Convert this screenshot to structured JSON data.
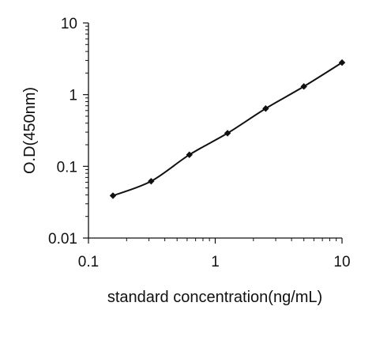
{
  "chart_data": {
    "type": "line",
    "title": "",
    "xlabel": "standard concentration(ng/mL)",
    "ylabel": "O.D(450nm)",
    "x_scale": "log",
    "y_scale": "log",
    "xlim": [
      0.1,
      10
    ],
    "ylim": [
      0.01,
      10
    ],
    "x_ticks": [
      {
        "value": 0.1,
        "label": "0.1"
      },
      {
        "value": 1,
        "label": "1"
      },
      {
        "value": 10,
        "label": "10"
      }
    ],
    "y_ticks": [
      {
        "value": 0.01,
        "label": "0.01"
      },
      {
        "value": 0.1,
        "label": "0.1"
      },
      {
        "value": 1,
        "label": "1"
      },
      {
        "value": 10,
        "label": "10"
      }
    ],
    "grid": false,
    "legend": "none",
    "series": [
      {
        "x": [
          0.156,
          0.312,
          0.625,
          1.25,
          2.5,
          5,
          10
        ],
        "y": [
          0.039,
          0.062,
          0.145,
          0.29,
          0.64,
          1.3,
          2.8
        ],
        "color": "#111111",
        "marker": "diamond"
      }
    ]
  }
}
